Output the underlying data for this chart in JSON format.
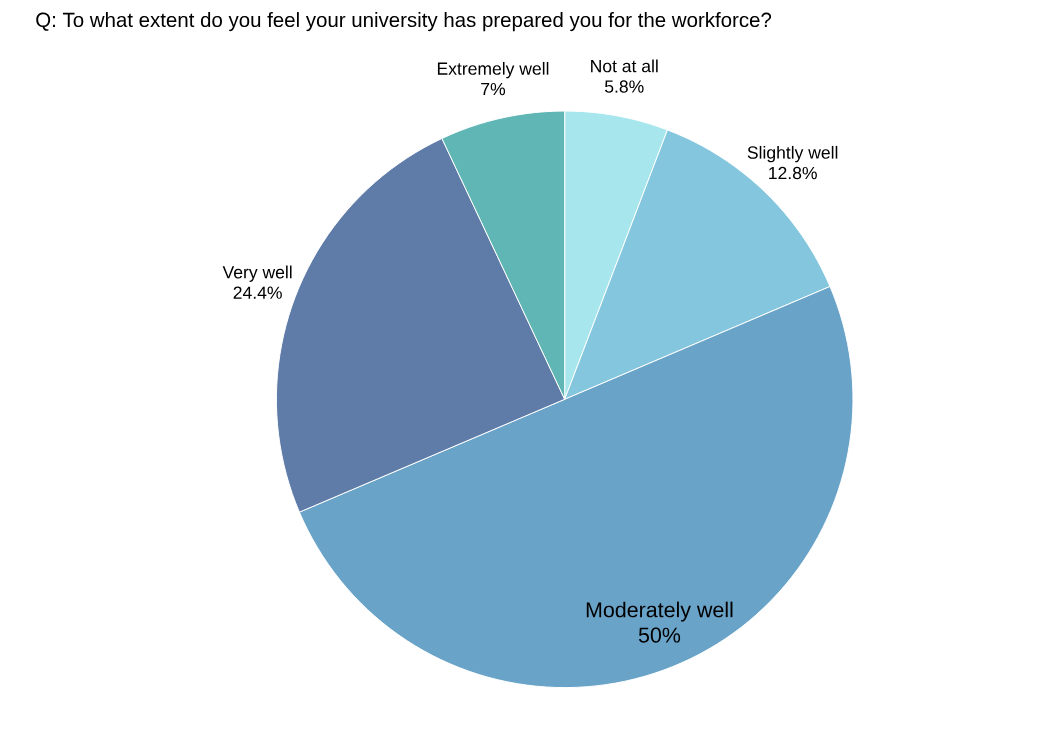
{
  "chart_data": {
    "type": "pie",
    "title": "Q: To what extent do you feel your university has prepared you for the workforce?",
    "categories": [
      "Not at all",
      "Slightly well",
      "Moderately well",
      "Very well",
      "Extremely well"
    ],
    "values": [
      5.8,
      12.8,
      50,
      24.4,
      7
    ],
    "value_labels": [
      "5.8%",
      "12.8%",
      "50%",
      "24.4%",
      "7%"
    ],
    "colors": [
      "#a8e6ee",
      "#84c6de",
      "#6aa3c8",
      "#5f7ca8",
      "#60b6b4"
    ]
  }
}
